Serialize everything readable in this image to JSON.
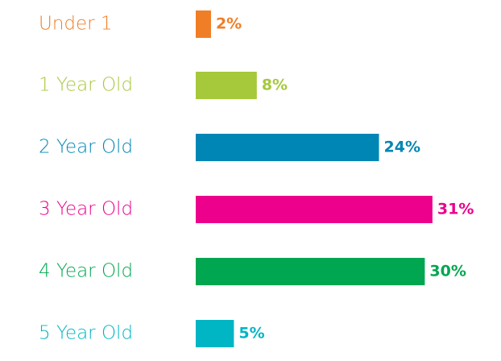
{
  "chart_data": {
    "type": "bar",
    "orientation": "horizontal",
    "categories": [
      "Under 1",
      "1 Year Old",
      "2 Year Old",
      "3 Year Old",
      "4 Year Old",
      "5 Year Old"
    ],
    "values": [
      2,
      8,
      24,
      31,
      30,
      5
    ],
    "value_labels": [
      "2%",
      "8%",
      "24%",
      "31%",
      "30%",
      "5%"
    ],
    "colors": [
      "#f07e26",
      "#a6c93b",
      "#0086b4",
      "#ec008c",
      "#00a650",
      "#00b5c4"
    ]
  }
}
